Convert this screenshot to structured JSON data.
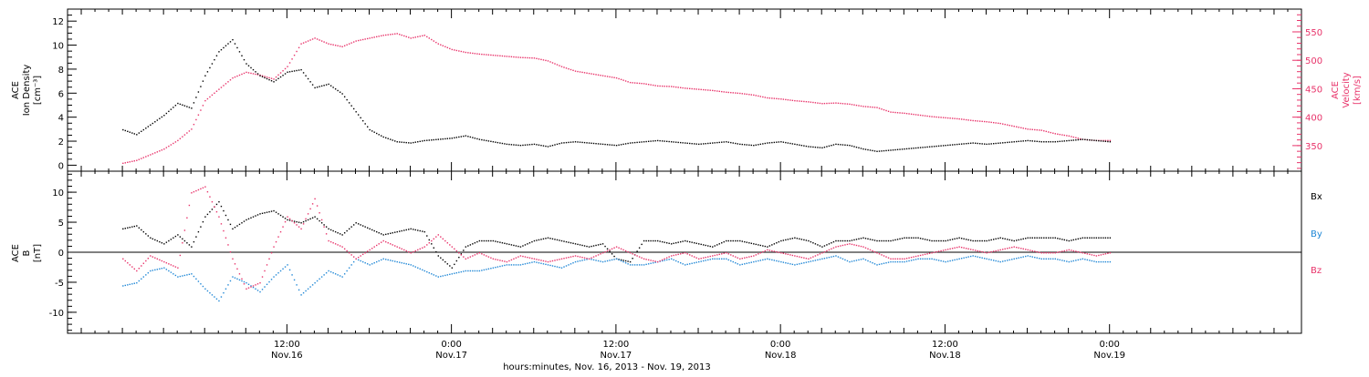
{
  "colors": {
    "black": "#000000",
    "pink": "#e8336a",
    "blue": "#1f87d6"
  },
  "chart_data": [
    {
      "type": "scatter",
      "panel": "top",
      "ylabel_lines": [
        "ACE",
        "Ion Density",
        "[cm⁻³]"
      ],
      "y_ticks": [
        "0",
        "2",
        "4",
        "6",
        "8",
        "10",
        "12"
      ],
      "ylim": [
        -0.5,
        13
      ],
      "right_ylabel_lines": [
        "ACE",
        "Velocity",
        "[km/s]"
      ],
      "right_y_ticks": [
        "350",
        "400",
        "450",
        "500",
        "550"
      ],
      "right_ylim": [
        305,
        590
      ],
      "series": [
        {
          "name": "",
          "axis": "left",
          "color": "#000000",
          "x_hours": [
            0,
            1,
            2,
            3,
            4,
            5,
            6,
            7,
            8,
            9,
            10,
            11,
            12,
            13,
            14,
            15,
            16,
            17,
            18,
            19,
            20,
            21,
            22,
            23,
            24,
            25,
            26,
            27,
            28,
            29,
            30,
            31,
            32,
            33,
            34,
            35,
            36,
            37,
            38,
            39,
            40,
            41,
            42,
            43,
            44,
            45,
            46,
            47,
            48,
            49,
            50,
            51,
            52,
            53,
            54,
            55,
            56,
            57,
            58,
            59,
            60,
            61,
            62,
            63,
            64,
            65,
            66,
            67,
            68,
            69,
            70,
            71,
            72
          ],
          "y": [
            3.0,
            2.6,
            3.4,
            4.2,
            5.2,
            4.8,
            7.5,
            9.5,
            10.5,
            8.5,
            7.5,
            7.0,
            7.8,
            8.0,
            6.5,
            6.8,
            6.0,
            4.5,
            3.0,
            2.4,
            2.0,
            1.9,
            2.1,
            2.2,
            2.3,
            2.5,
            2.2,
            2.0,
            1.8,
            1.7,
            1.8,
            1.6,
            1.9,
            2.0,
            1.9,
            1.8,
            1.7,
            1.9,
            2.0,
            2.1,
            2.0,
            1.9,
            1.8,
            1.9,
            2.0,
            1.8,
            1.7,
            1.9,
            2.0,
            1.8,
            1.6,
            1.5,
            1.8,
            1.7,
            1.4,
            1.2,
            1.3,
            1.4,
            1.5,
            1.6,
            1.7,
            1.8,
            1.9,
            1.8,
            1.9,
            2.0,
            2.1,
            2.0,
            2.0,
            2.1,
            2.2,
            2.1,
            2.0
          ]
        },
        {
          "name": "",
          "axis": "right",
          "color": "#e8336a",
          "x_hours": [
            0,
            1,
            2,
            3,
            4,
            5,
            6,
            7,
            8,
            9,
            10,
            11,
            12,
            13,
            14,
            15,
            16,
            17,
            18,
            19,
            20,
            21,
            22,
            23,
            24,
            25,
            26,
            27,
            28,
            29,
            30,
            31,
            32,
            33,
            34,
            35,
            36,
            37,
            38,
            39,
            40,
            41,
            42,
            43,
            44,
            45,
            46,
            47,
            48,
            49,
            50,
            51,
            52,
            53,
            54,
            55,
            56,
            57,
            58,
            59,
            60,
            61,
            62,
            63,
            64,
            65,
            66,
            67,
            68,
            69,
            70,
            71,
            72
          ],
          "y": [
            320,
            325,
            335,
            345,
            360,
            380,
            430,
            450,
            470,
            480,
            475,
            468,
            490,
            530,
            540,
            530,
            525,
            535,
            540,
            545,
            548,
            540,
            545,
            530,
            520,
            515,
            512,
            510,
            508,
            506,
            505,
            500,
            490,
            482,
            478,
            474,
            470,
            462,
            460,
            456,
            455,
            452,
            450,
            448,
            445,
            443,
            440,
            435,
            433,
            430,
            428,
            425,
            426,
            424,
            420,
            418,
            410,
            408,
            405,
            402,
            400,
            398,
            395,
            393,
            390,
            385,
            380,
            378,
            372,
            368,
            362,
            360,
            360
          ]
        }
      ]
    },
    {
      "type": "scatter",
      "panel": "bottom",
      "ylabel_lines": [
        "ACE",
        "B",
        "[nT]"
      ],
      "y_ticks": [
        "-10",
        "-5",
        "0",
        "5",
        "10"
      ],
      "ylim": [
        -13.5,
        13.5
      ],
      "zero_line": true,
      "series": [
        {
          "name": "Bx",
          "color": "#000000",
          "x_hours": [
            0,
            1,
            2,
            3,
            4,
            5,
            6,
            7,
            8,
            9,
            10,
            11,
            12,
            13,
            14,
            15,
            16,
            17,
            18,
            19,
            20,
            21,
            22,
            23,
            24,
            25,
            26,
            27,
            28,
            29,
            30,
            31,
            32,
            33,
            34,
            35,
            36,
            37,
            38,
            39,
            40,
            41,
            42,
            43,
            44,
            45,
            46,
            47,
            48,
            49,
            50,
            51,
            52,
            53,
            54,
            55,
            56,
            57,
            58,
            59,
            60,
            61,
            62,
            63,
            64,
            65,
            66,
            67,
            68,
            69,
            70,
            71,
            72
          ],
          "y": [
            4.0,
            4.5,
            2.5,
            1.5,
            3.0,
            1.0,
            6.0,
            8.5,
            4.0,
            5.5,
            6.5,
            7.0,
            5.5,
            5.0,
            6.0,
            4.0,
            3.0,
            5.0,
            4.0,
            3.0,
            3.5,
            4.0,
            3.5,
            -0.5,
            -2.5,
            1.0,
            2.0,
            2.0,
            1.5,
            1.0,
            2.0,
            2.5,
            2.0,
            1.5,
            1.0,
            1.5,
            -1.0,
            -1.5,
            2.0,
            2.0,
            1.5,
            2.0,
            1.5,
            1.0,
            2.0,
            2.0,
            1.5,
            1.0,
            2.0,
            2.5,
            2.0,
            1.0,
            2.0,
            2.0,
            2.5,
            2.0,
            2.0,
            2.5,
            2.5,
            2.0,
            2.0,
            2.5,
            2.0,
            2.0,
            2.5,
            2.0,
            2.5,
            2.5,
            2.5,
            2.0,
            2.5,
            2.5,
            2.5
          ]
        },
        {
          "name": "By",
          "color": "#1f87d6",
          "x_hours": [
            0,
            1,
            2,
            3,
            4,
            5,
            6,
            7,
            8,
            9,
            10,
            11,
            12,
            13,
            14,
            15,
            16,
            17,
            18,
            19,
            20,
            21,
            22,
            23,
            24,
            25,
            26,
            27,
            28,
            29,
            30,
            31,
            32,
            33,
            34,
            35,
            36,
            37,
            38,
            39,
            40,
            41,
            42,
            43,
            44,
            45,
            46,
            47,
            48,
            49,
            50,
            51,
            52,
            53,
            54,
            55,
            56,
            57,
            58,
            59,
            60,
            61,
            62,
            63,
            64,
            65,
            66,
            67,
            68,
            69,
            70,
            71,
            72
          ],
          "y": [
            -5.5,
            -5.0,
            -3.0,
            -2.5,
            -4.0,
            -3.5,
            -6.0,
            -8.0,
            -4.0,
            -5.0,
            -6.5,
            -4.0,
            -2.0,
            -7.0,
            -5.0,
            -3.0,
            -4.0,
            -1.0,
            -2.0,
            -1.0,
            -1.5,
            -2.0,
            -3.0,
            -4.0,
            -3.5,
            -3.0,
            -3.0,
            -2.5,
            -2.0,
            -2.0,
            -1.5,
            -2.0,
            -2.5,
            -1.5,
            -1.0,
            -1.5,
            -1.0,
            -2.0,
            -2.0,
            -1.5,
            -1.0,
            -2.0,
            -1.5,
            -1.0,
            -1.0,
            -2.0,
            -1.5,
            -1.0,
            -1.5,
            -2.0,
            -1.5,
            -1.0,
            -0.5,
            -1.5,
            -1.0,
            -2.0,
            -1.5,
            -1.5,
            -1.0,
            -1.0,
            -1.5,
            -1.0,
            -0.5,
            -1.0,
            -1.5,
            -1.0,
            -0.5,
            -1.0,
            -1.0,
            -1.5,
            -1.0,
            -1.5,
            -1.5
          ]
        },
        {
          "name": "Bz",
          "color": "#e8336a",
          "x_hours": [
            0,
            1,
            2,
            3,
            4,
            5,
            6,
            7,
            8,
            9,
            10,
            11,
            12,
            13,
            14,
            15,
            16,
            17,
            18,
            19,
            20,
            21,
            22,
            23,
            24,
            25,
            26,
            27,
            28,
            29,
            30,
            31,
            32,
            33,
            34,
            35,
            36,
            37,
            38,
            39,
            40,
            41,
            42,
            43,
            44,
            45,
            46,
            47,
            48,
            49,
            50,
            51,
            52,
            53,
            54,
            55,
            56,
            57,
            58,
            59,
            60,
            61,
            62,
            63,
            64,
            65,
            66,
            67,
            68,
            69,
            70,
            71,
            72
          ],
          "y": [
            -1.0,
            -3.0,
            -0.5,
            -1.5,
            -2.5,
            10.0,
            11.0,
            6.0,
            -1.0,
            -6.0,
            -5.0,
            1.0,
            6.0,
            4.0,
            9.0,
            2.0,
            1.0,
            -1.0,
            0.5,
            2.0,
            1.0,
            0.0,
            1.0,
            3.0,
            1.0,
            -1.0,
            0.0,
            -1.0,
            -1.5,
            -0.5,
            -1.0,
            -1.5,
            -1.0,
            -0.5,
            -1.0,
            0.0,
            1.0,
            0.0,
            -1.0,
            -1.5,
            -0.5,
            0.0,
            -1.0,
            -0.5,
            0.0,
            -1.0,
            -0.5,
            0.5,
            0.0,
            -0.5,
            -1.0,
            0.0,
            1.0,
            1.5,
            1.0,
            0.0,
            -1.0,
            -1.0,
            -0.5,
            0.0,
            0.5,
            1.0,
            0.5,
            0.0,
            0.5,
            1.0,
            0.5,
            0.0,
            0.0,
            0.5,
            0.0,
            -0.5,
            0.0
          ]
        }
      ]
    }
  ],
  "x_axis": {
    "xlim_hours": [
      -4,
      86
    ],
    "major_ticks": [
      {
        "hour": 12,
        "time": "12:00",
        "date": "Nov.16"
      },
      {
        "hour": 24,
        "time": "0:00",
        "date": "Nov.17"
      },
      {
        "hour": 36,
        "time": "12:00",
        "date": "Nov.17"
      },
      {
        "hour": 48,
        "time": "0:00",
        "date": "Nov.18"
      },
      {
        "hour": 60,
        "time": "12:00",
        "date": "Nov.18"
      },
      {
        "hour": 72,
        "time": "0:00",
        "date": "Nov.19"
      }
    ],
    "xlabel": "hours:minutes, Nov. 16, 2013 - Nov. 19, 2013"
  }
}
